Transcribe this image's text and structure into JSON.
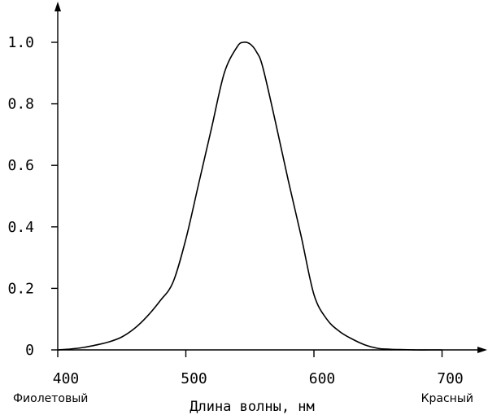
{
  "chart_data": {
    "type": "line",
    "title": "",
    "xlabel": "Длина волны, нм",
    "ylabel": "",
    "xlim": [
      400,
      730
    ],
    "ylim": [
      0,
      1.0
    ],
    "x_ticks": [
      {
        "value": 400,
        "label": "400"
      },
      {
        "value": 500,
        "label": "500"
      },
      {
        "value": 600,
        "label": "600"
      },
      {
        "value": 700,
        "label": "700"
      }
    ],
    "y_ticks": [
      {
        "value": 0,
        "label": "0"
      },
      {
        "value": 0.2,
        "label": "0.2"
      },
      {
        "value": 0.4,
        "label": "0.4"
      },
      {
        "value": 0.6,
        "label": "0.6"
      },
      {
        "value": 0.8,
        "label": "0.8"
      },
      {
        "value": 1.0,
        "label": "1.0"
      }
    ],
    "annotations": {
      "left": "Фиолетовый",
      "right": "Красный"
    },
    "grid": false,
    "series": [
      {
        "x": [
          400,
          410,
          420,
          430,
          440,
          450,
          460,
          470,
          480,
          490,
          500,
          510,
          520,
          530,
          540,
          545,
          550,
          555,
          560,
          570,
          580,
          590,
          600,
          610,
          620,
          630,
          640,
          650,
          660,
          670,
          680,
          690,
          700
        ],
        "y": [
          0,
          0.003,
          0.008,
          0.016,
          0.026,
          0.042,
          0.07,
          0.11,
          0.16,
          0.22,
          0.36,
          0.54,
          0.72,
          0.9,
          0.985,
          1.0,
          0.995,
          0.97,
          0.92,
          0.74,
          0.55,
          0.37,
          0.18,
          0.1,
          0.06,
          0.035,
          0.016,
          0.005,
          0.002,
          0.001,
          0,
          0,
          0
        ]
      }
    ]
  }
}
